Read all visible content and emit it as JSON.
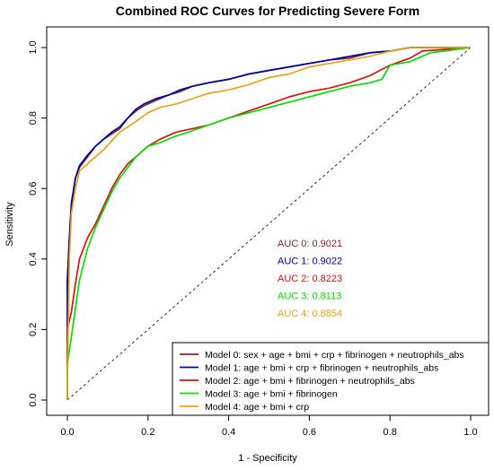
{
  "chart_data": {
    "type": "line",
    "title": "Combined ROC Curves for Predicting Severe Form",
    "xlabel": "1 - Specificity",
    "ylabel": "Sensitivity",
    "xlim": [
      0,
      1
    ],
    "ylim": [
      0,
      1
    ],
    "xticks": [
      "0.0",
      "0.2",
      "0.4",
      "0.6",
      "0.8",
      "1.0"
    ],
    "yticks": [
      "0.0",
      "0.2",
      "0.4",
      "0.6",
      "0.8",
      "1.0"
    ],
    "grid": false,
    "legend_position": "bottom-right",
    "diagonal_reference": true,
    "auc_labels": [
      "AUC 0: 0.9021",
      "AUC 1: 0.9022",
      "AUC 2: 0.8223",
      "AUC 3: 0.8113",
      "AUC 4: 0.8854"
    ],
    "series": [
      {
        "name": "Model 0: sex + age + bmi + crp + fibrinogen + neutrophils_abs",
        "color": "#8B2323",
        "x": [
          0,
          0,
          0.005,
          0.01,
          0.02,
          0.03,
          0.05,
          0.07,
          0.09,
          0.11,
          0.13,
          0.15,
          0.17,
          0.19,
          0.22,
          0.25,
          0.28,
          0.31,
          0.35,
          0.4,
          0.45,
          0.5,
          0.55,
          0.6,
          0.65,
          0.7,
          0.75,
          0.8,
          0.85,
          1.0
        ],
        "y": [
          0,
          0.33,
          0.45,
          0.55,
          0.63,
          0.66,
          0.69,
          0.72,
          0.74,
          0.755,
          0.77,
          0.8,
          0.82,
          0.835,
          0.85,
          0.865,
          0.875,
          0.89,
          0.9,
          0.91,
          0.925,
          0.935,
          0.945,
          0.955,
          0.965,
          0.97,
          0.985,
          0.99,
          1.0,
          1.0
        ]
      },
      {
        "name": "Model 1: age + bmi + crp + fibrinogen + neutrophils_abs",
        "color": "#0000AA",
        "x": [
          0,
          0,
          0.005,
          0.01,
          0.02,
          0.03,
          0.05,
          0.07,
          0.09,
          0.11,
          0.13,
          0.15,
          0.17,
          0.19,
          0.22,
          0.25,
          0.28,
          0.31,
          0.35,
          0.4,
          0.45,
          0.5,
          0.55,
          0.6,
          0.65,
          0.7,
          0.75,
          0.8,
          0.85,
          1.0
        ],
        "y": [
          0,
          0.34,
          0.46,
          0.56,
          0.63,
          0.665,
          0.695,
          0.72,
          0.74,
          0.76,
          0.775,
          0.8,
          0.825,
          0.84,
          0.855,
          0.865,
          0.88,
          0.89,
          0.9,
          0.91,
          0.925,
          0.935,
          0.945,
          0.955,
          0.965,
          0.975,
          0.985,
          0.99,
          1.0,
          1.0
        ]
      },
      {
        "name": "Model 2: age + bmi + fibrinogen + neutrophils_abs",
        "color": "#DD1111",
        "x": [
          0,
          0,
          0.01,
          0.02,
          0.03,
          0.05,
          0.07,
          0.09,
          0.11,
          0.13,
          0.15,
          0.17,
          0.2,
          0.23,
          0.27,
          0.31,
          0.35,
          0.4,
          0.45,
          0.5,
          0.55,
          0.6,
          0.65,
          0.7,
          0.75,
          0.8,
          0.85,
          0.88,
          1.0
        ],
        "y": [
          0,
          0.2,
          0.25,
          0.33,
          0.4,
          0.46,
          0.5,
          0.55,
          0.6,
          0.64,
          0.67,
          0.69,
          0.72,
          0.74,
          0.76,
          0.77,
          0.78,
          0.8,
          0.82,
          0.84,
          0.86,
          0.875,
          0.885,
          0.9,
          0.92,
          0.95,
          0.97,
          0.99,
          1.0
        ]
      },
      {
        "name": "Model 3: age + bmi + fibrinogen",
        "color": "#00E000",
        "x": [
          0,
          0,
          0.01,
          0.02,
          0.03,
          0.05,
          0.07,
          0.09,
          0.11,
          0.13,
          0.15,
          0.17,
          0.2,
          0.23,
          0.26,
          0.3,
          0.35,
          0.4,
          0.45,
          0.5,
          0.55,
          0.6,
          0.65,
          0.7,
          0.75,
          0.78,
          0.8,
          0.85,
          0.9,
          1.0
        ],
        "y": [
          0,
          0.1,
          0.18,
          0.26,
          0.34,
          0.43,
          0.49,
          0.54,
          0.59,
          0.63,
          0.66,
          0.69,
          0.72,
          0.73,
          0.745,
          0.76,
          0.78,
          0.8,
          0.815,
          0.83,
          0.845,
          0.86,
          0.875,
          0.89,
          0.9,
          0.91,
          0.95,
          0.96,
          0.985,
          1.0
        ]
      },
      {
        "name": "Model 4: age + bmi + crp",
        "color": "#E8A317",
        "x": [
          0,
          0,
          0.005,
          0.01,
          0.02,
          0.03,
          0.05,
          0.07,
          0.09,
          0.11,
          0.13,
          0.15,
          0.17,
          0.2,
          0.23,
          0.27,
          0.31,
          0.35,
          0.4,
          0.45,
          0.5,
          0.55,
          0.6,
          0.65,
          0.7,
          0.75,
          0.8,
          0.85,
          1.0
        ],
        "y": [
          0,
          0.05,
          0.4,
          0.53,
          0.6,
          0.65,
          0.67,
          0.69,
          0.71,
          0.735,
          0.76,
          0.775,
          0.79,
          0.815,
          0.83,
          0.84,
          0.855,
          0.87,
          0.88,
          0.895,
          0.915,
          0.925,
          0.945,
          0.955,
          0.965,
          0.975,
          0.99,
          1.0,
          1.0
        ]
      }
    ]
  }
}
